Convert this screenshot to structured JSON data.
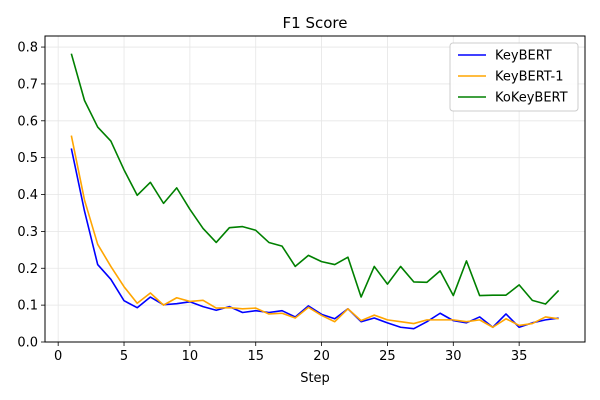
{
  "chart_data": {
    "type": "line",
    "title": "F1 Score",
    "xlabel": "Step",
    "ylabel": "",
    "xlim": [
      -1,
      40
    ],
    "ylim": [
      0.0,
      0.83
    ],
    "xticks": [
      0,
      5,
      10,
      15,
      20,
      25,
      30,
      35
    ],
    "yticks": [
      0.0,
      0.1,
      0.2,
      0.3,
      0.4,
      0.5,
      0.6,
      0.7,
      0.8
    ],
    "ytick_labels": [
      "0.0",
      "0.1",
      "0.2",
      "0.3",
      "0.4",
      "0.5",
      "0.6",
      "0.7",
      "0.8"
    ],
    "grid": true,
    "legend_position": "top-right",
    "x": [
      1,
      2,
      3,
      4,
      5,
      6,
      7,
      8,
      9,
      10,
      11,
      12,
      13,
      14,
      15,
      16,
      17,
      18,
      19,
      20,
      21,
      22,
      23,
      24,
      25,
      26,
      27,
      28,
      29,
      30,
      31,
      32,
      33,
      34,
      35,
      36,
      37,
      38
    ],
    "series": [
      {
        "name": "KeyBERT",
        "color": "#0000ff",
        "values": [
          0.525,
          0.355,
          0.21,
          0.17,
          0.112,
          0.093,
          0.122,
          0.101,
          0.104,
          0.109,
          0.096,
          0.086,
          0.096,
          0.08,
          0.085,
          0.08,
          0.085,
          0.068,
          0.098,
          0.075,
          0.063,
          0.09,
          0.055,
          0.065,
          0.052,
          0.04,
          0.036,
          0.055,
          0.078,
          0.058,
          0.052,
          0.068,
          0.04,
          0.076,
          0.04,
          0.052,
          0.06,
          0.065
        ]
      },
      {
        "name": "KeyBERT-1",
        "color": "#ffa500",
        "values": [
          0.56,
          0.385,
          0.265,
          0.205,
          0.15,
          0.105,
          0.133,
          0.1,
          0.12,
          0.11,
          0.113,
          0.092,
          0.093,
          0.09,
          0.092,
          0.076,
          0.078,
          0.065,
          0.094,
          0.072,
          0.055,
          0.09,
          0.058,
          0.073,
          0.06,
          0.055,
          0.05,
          0.06,
          0.06,
          0.06,
          0.055,
          0.06,
          0.04,
          0.063,
          0.045,
          0.05,
          0.068,
          0.063
        ]
      },
      {
        "name": "KoKeyBERT",
        "color": "#008000",
        "values": [
          0.782,
          0.655,
          0.583,
          0.545,
          0.467,
          0.398,
          0.433,
          0.376,
          0.418,
          0.36,
          0.308,
          0.27,
          0.31,
          0.313,
          0.303,
          0.27,
          0.26,
          0.205,
          0.235,
          0.218,
          0.21,
          0.23,
          0.122,
          0.205,
          0.157,
          0.205,
          0.163,
          0.162,
          0.193,
          0.126,
          0.22,
          0.126,
          0.127,
          0.127,
          0.155,
          0.113,
          0.103,
          0.14
        ]
      }
    ]
  }
}
